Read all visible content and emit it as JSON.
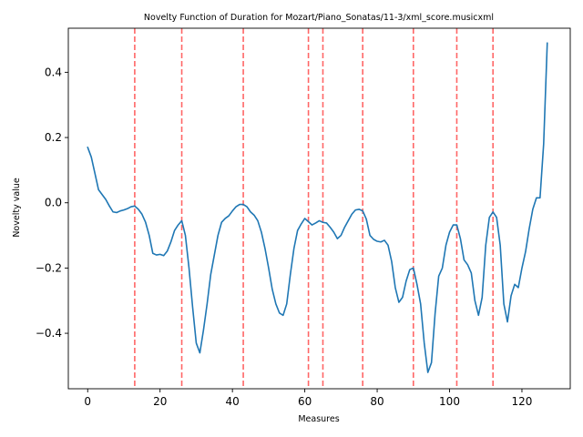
{
  "chart_data": {
    "type": "line",
    "title": "Novelty Function of Duration for Mozart/Piano_Sonatas/11-3/xml_score.musicxml",
    "xlabel": "Measures",
    "ylabel": "Novelty value",
    "xlim": [
      -5.35,
      133.35
    ],
    "ylim": [
      -0.57,
      0.535
    ],
    "xticks": [
      0,
      20,
      40,
      60,
      80,
      100,
      120
    ],
    "yticks": [
      -0.4,
      -0.2,
      0.0,
      0.2,
      0.4
    ],
    "xtick_labels": [
      "0",
      "20",
      "40",
      "60",
      "80",
      "100",
      "120"
    ],
    "ytick_labels": [
      "−0.4",
      "−0.2",
      "0.0",
      "0.2",
      "0.4"
    ],
    "grid": false,
    "colors": {
      "line": "#1f77b4",
      "boundary": "#ff0000"
    },
    "boundaries": [
      13,
      26,
      43,
      61,
      65,
      76,
      90,
      102,
      112
    ],
    "series": [
      {
        "x": [
          0,
          1,
          2,
          3,
          4,
          5,
          6,
          7,
          8,
          9,
          10,
          11,
          12,
          13,
          14,
          15,
          16,
          17,
          18,
          19,
          20,
          21,
          22,
          23,
          24,
          25,
          26,
          27,
          28,
          29,
          30,
          31,
          32,
          33,
          34,
          35,
          36,
          37,
          38,
          39,
          40,
          41,
          42,
          43,
          44,
          45,
          46,
          47,
          48,
          49,
          50,
          51,
          52,
          53,
          54,
          55,
          56,
          57,
          58,
          59,
          60,
          61,
          62,
          63,
          64,
          65,
          66,
          67,
          68,
          69,
          70,
          71,
          72,
          73,
          74,
          75,
          76,
          77,
          78,
          79,
          80,
          81,
          82,
          83,
          84,
          85,
          86,
          87,
          88,
          89,
          90,
          91,
          92,
          93,
          94,
          95,
          96,
          97,
          98,
          99,
          100,
          101,
          102,
          103,
          104,
          105,
          106,
          107,
          108,
          109,
          110,
          111,
          112,
          113,
          114,
          115,
          116,
          117,
          118,
          119,
          120,
          121,
          122,
          123,
          124,
          125,
          126,
          127
        ],
        "values": [
          0.17,
          0.14,
          0.09,
          0.04,
          0.025,
          0.01,
          -0.01,
          -0.028,
          -0.03,
          -0.025,
          -0.022,
          -0.018,
          -0.012,
          -0.01,
          -0.02,
          -0.035,
          -0.06,
          -0.1,
          -0.155,
          -0.16,
          -0.158,
          -0.162,
          -0.148,
          -0.12,
          -0.085,
          -0.068,
          -0.055,
          -0.1,
          -0.2,
          -0.32,
          -0.43,
          -0.46,
          -0.39,
          -0.31,
          -0.22,
          -0.16,
          -0.1,
          -0.06,
          -0.048,
          -0.04,
          -0.025,
          -0.012,
          -0.005,
          -0.005,
          -0.012,
          -0.028,
          -0.038,
          -0.055,
          -0.09,
          -0.14,
          -0.2,
          -0.265,
          -0.31,
          -0.338,
          -0.345,
          -0.31,
          -0.22,
          -0.14,
          -0.085,
          -0.065,
          -0.048,
          -0.058,
          -0.068,
          -0.062,
          -0.055,
          -0.06,
          -0.062,
          -0.075,
          -0.09,
          -0.11,
          -0.1,
          -0.075,
          -0.055,
          -0.035,
          -0.022,
          -0.02,
          -0.025,
          -0.05,
          -0.1,
          -0.112,
          -0.118,
          -0.12,
          -0.115,
          -0.13,
          -0.18,
          -0.26,
          -0.305,
          -0.29,
          -0.24,
          -0.205,
          -0.2,
          -0.25,
          -0.31,
          -0.43,
          -0.52,
          -0.49,
          -0.34,
          -0.225,
          -0.2,
          -0.13,
          -0.09,
          -0.068,
          -0.068,
          -0.11,
          -0.175,
          -0.19,
          -0.215,
          -0.3,
          -0.345,
          -0.29,
          -0.13,
          -0.045,
          -0.028,
          -0.045,
          -0.13,
          -0.31,
          -0.365,
          -0.285,
          -0.25,
          -0.26,
          -0.2,
          -0.15,
          -0.08,
          -0.02,
          0.015,
          0.015,
          0.18,
          0.49
        ]
      }
    ]
  }
}
